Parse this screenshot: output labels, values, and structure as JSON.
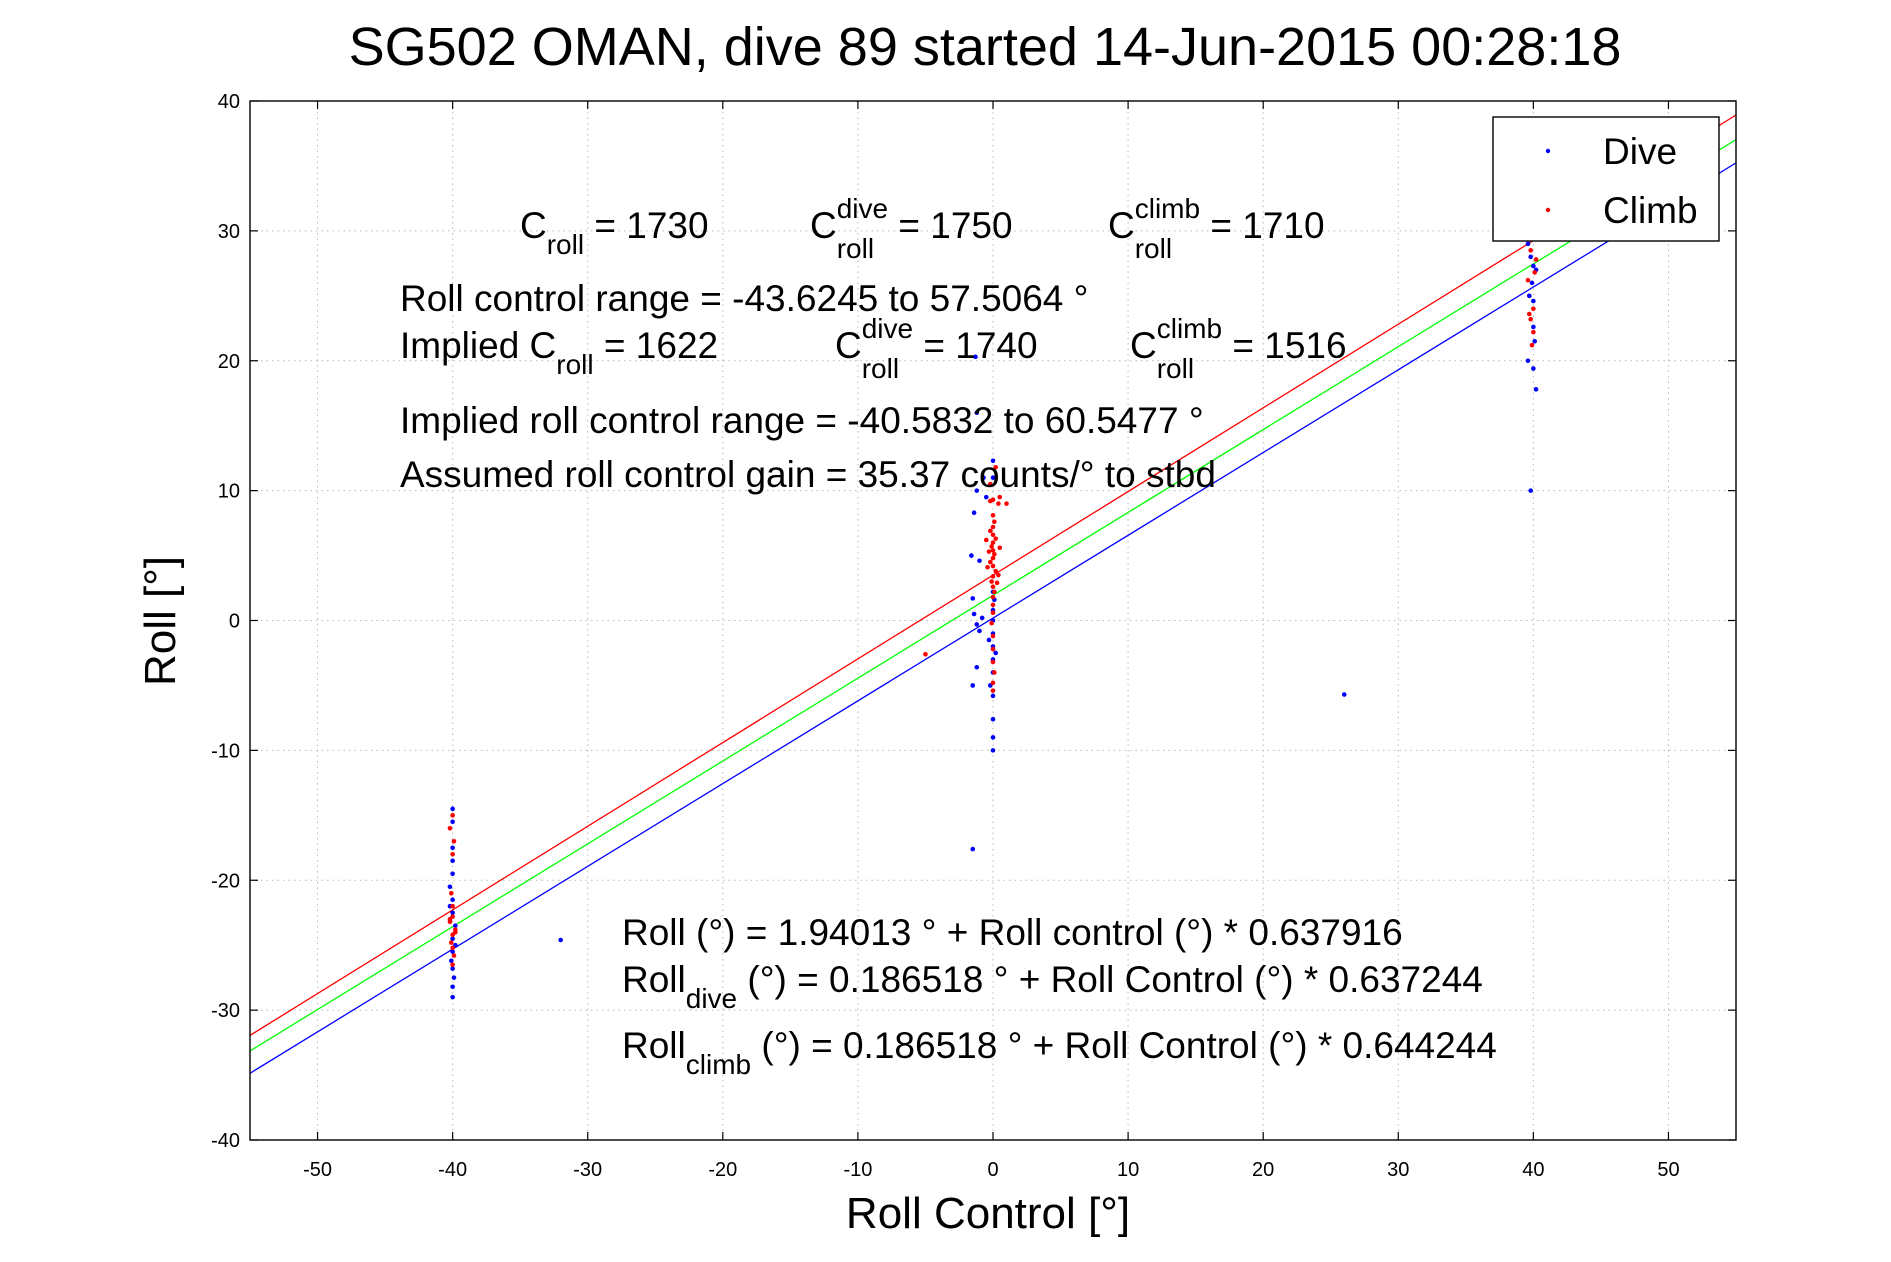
{
  "chart_data": {
    "type": "scatter",
    "title": "SG502 OMAN, dive 89 started 14-Jun-2015 00:28:18",
    "xlabel": "Roll Control [°]",
    "ylabel": "Roll [°]",
    "xlim": [
      -55,
      55
    ],
    "ylim": [
      -40,
      40
    ],
    "xticks": [
      -50,
      -40,
      -30,
      -20,
      -10,
      0,
      10,
      20,
      30,
      40,
      50
    ],
    "yticks": [
      -40,
      -30,
      -20,
      -10,
      0,
      10,
      20,
      30,
      40
    ],
    "grid": true,
    "legend": {
      "placement": "top-right",
      "entries": [
        {
          "name": "Dive",
          "color": "#0000ff"
        },
        {
          "name": "Climb",
          "color": "#ff0000"
        }
      ]
    },
    "fit_lines": [
      {
        "intercept": 0.186518,
        "slope": 0.637244,
        "color": "#0000ff"
      },
      {
        "intercept": 1.94013,
        "slope": 0.637916,
        "color": "#00ff00"
      },
      {
        "intercept": 0.186518,
        "slope": 0.644244,
        "color": "#ff0000",
        "offset_note_free": 3.3
      }
    ],
    "series": [
      {
        "name": "Dive",
        "color": "#0000ff",
        "points": [
          [
            -40,
            -14.5
          ],
          [
            -40,
            -15.5
          ],
          [
            -40,
            -17.5
          ],
          [
            -40,
            -18.5
          ],
          [
            -40,
            -19.5
          ],
          [
            -40.2,
            -20.5
          ],
          [
            -40,
            -21.5
          ],
          [
            -40,
            -22.5
          ],
          [
            -39.8,
            -23.5
          ],
          [
            -40,
            -24.5
          ],
          [
            -40,
            -25.5
          ],
          [
            -40.1,
            -26.2
          ],
          [
            -40,
            -26.8
          ],
          [
            -39.9,
            -27.5
          ],
          [
            -40,
            -28.2
          ],
          [
            -40,
            -29
          ],
          [
            -40.2,
            -22
          ],
          [
            -39.8,
            -25
          ],
          [
            -32,
            -24.6
          ],
          [
            -1.5,
            -17.6
          ],
          [
            0,
            -10
          ],
          [
            0,
            -9
          ],
          [
            0,
            -7.6
          ],
          [
            0,
            -5.8
          ],
          [
            -0.2,
            -5
          ],
          [
            -1.5,
            -5
          ],
          [
            0,
            -4
          ],
          [
            -1.2,
            -3.6
          ],
          [
            0,
            -3
          ],
          [
            0.2,
            -2.5
          ],
          [
            0,
            -2
          ],
          [
            -0.3,
            -1.5
          ],
          [
            0,
            -1
          ],
          [
            -1,
            -0.8
          ],
          [
            -1.2,
            -0.3
          ],
          [
            -0.8,
            0.2
          ],
          [
            0,
            0
          ],
          [
            -1.5,
            1.7
          ],
          [
            -1.4,
            0.5
          ],
          [
            0,
            0.8
          ],
          [
            0.1,
            1.6
          ],
          [
            0,
            2.2
          ],
          [
            -1.6,
            5
          ],
          [
            -1,
            4.6
          ],
          [
            -1.4,
            8.3
          ],
          [
            -1.2,
            10
          ],
          [
            -1.2,
            16
          ],
          [
            -1.3,
            20.3
          ],
          [
            0,
            11
          ],
          [
            0,
            12.3
          ],
          [
            -0.5,
            9.5
          ],
          [
            -0.7,
            11
          ],
          [
            26,
            -5.7
          ],
          [
            39.6,
            29
          ],
          [
            39.8,
            28
          ],
          [
            40,
            27.3
          ],
          [
            40.2,
            27
          ],
          [
            39.9,
            26
          ],
          [
            39.7,
            25
          ],
          [
            40,
            24.6
          ],
          [
            39.6,
            20
          ],
          [
            40,
            19.4
          ],
          [
            40.2,
            17.8
          ],
          [
            39.8,
            10
          ],
          [
            40,
            22.6
          ],
          [
            40.1,
            21.5
          ]
        ]
      },
      {
        "name": "Climb",
        "color": "#ff0000",
        "points": [
          [
            -40,
            -15
          ],
          [
            -40.2,
            -16
          ],
          [
            -39.9,
            -17
          ],
          [
            -40,
            -18
          ],
          [
            -40.1,
            -21
          ],
          [
            -40,
            -22
          ],
          [
            -40,
            -22.8
          ],
          [
            -40.2,
            -23.2
          ],
          [
            -39.8,
            -23.8
          ],
          [
            -40,
            -24.2
          ],
          [
            -40.1,
            -24.8
          ],
          [
            -40,
            -25.2
          ],
          [
            -39.9,
            -25.8
          ],
          [
            -40,
            -26.5
          ],
          [
            -40.2,
            -23
          ],
          [
            -39.8,
            -24
          ],
          [
            -5,
            -2.6
          ],
          [
            0,
            -5.4
          ],
          [
            0,
            -4.8
          ],
          [
            0.1,
            -4
          ],
          [
            0,
            -3.2
          ],
          [
            0,
            -2.2
          ],
          [
            0,
            -1.2
          ],
          [
            -0.1,
            -0.2
          ],
          [
            0,
            0.6
          ],
          [
            0,
            1.2
          ],
          [
            0,
            1.8
          ],
          [
            0.1,
            2.2
          ],
          [
            0,
            2.6
          ],
          [
            -0.1,
            3
          ],
          [
            0,
            3.4
          ],
          [
            0.2,
            3.8
          ],
          [
            0,
            4.2
          ],
          [
            -0.2,
            4.5
          ],
          [
            0,
            4.8
          ],
          [
            0.1,
            5.1
          ],
          [
            0,
            5.4
          ],
          [
            -0.1,
            5.7
          ],
          [
            0,
            6
          ],
          [
            0.2,
            6.3
          ],
          [
            0,
            6.6
          ],
          [
            -0.2,
            6.9
          ],
          [
            0,
            7.2
          ],
          [
            0.1,
            7.6
          ],
          [
            0,
            8.1
          ],
          [
            0.4,
            3.5
          ],
          [
            -0.4,
            4.1
          ],
          [
            0.5,
            5.6
          ],
          [
            -0.5,
            6.2
          ],
          [
            0.3,
            2.9
          ],
          [
            -0.3,
            5.3
          ],
          [
            0.4,
            9
          ],
          [
            0,
            9.3
          ],
          [
            0.5,
            9.5
          ],
          [
            -0.2,
            9.2
          ],
          [
            1,
            9
          ],
          [
            0.2,
            11.8
          ],
          [
            -0.2,
            10.5
          ],
          [
            39.7,
            29.4
          ],
          [
            40,
            30.2
          ],
          [
            39.8,
            28.5
          ],
          [
            40.2,
            27.8
          ],
          [
            39.6,
            26.2
          ],
          [
            40,
            24
          ],
          [
            39.8,
            23.2
          ],
          [
            40,
            22.2
          ],
          [
            39.9,
            21.2
          ],
          [
            39.7,
            23.6
          ],
          [
            40.1,
            26.8
          ]
        ]
      }
    ],
    "annotations": [
      {
        "base": "C",
        "sub": "roll",
        "sup": "",
        "rest": " = 1730"
      },
      {
        "base": "C",
        "sub": "roll",
        "sup": "dive",
        "rest": " = 1750"
      },
      {
        "base": "C",
        "sub": "roll",
        "sup": "climb",
        "rest": " = 1710"
      },
      {
        "text": "Roll control range = -43.6245 to 57.5064 °"
      },
      {
        "base": "Implied C",
        "sub": "roll",
        "sup": "",
        "rest": " = 1622"
      },
      {
        "base": "C",
        "sub": "roll",
        "sup": "dive",
        "rest": " = 1740"
      },
      {
        "base": "C",
        "sub": "roll",
        "sup": "climb",
        "rest": " = 1516"
      },
      {
        "text": "Implied roll control range = -40.5832 to 60.5477 °"
      },
      {
        "text": "Assumed roll control gain = 35.37 counts/° to stbd"
      },
      {
        "text": "Roll (°) = 1.94013 ° + Roll control (°) * 0.637916"
      },
      {
        "base": "Roll",
        "sub": "dive",
        "sup": "",
        "rest": " (°) = 0.186518 ° + Roll Control (°) * 0.637244"
      },
      {
        "base": "Roll",
        "sub": "climb",
        "sup": "",
        "rest": " (°) = 0.186518 ° + Roll Control (°) * 0.644244"
      }
    ]
  }
}
